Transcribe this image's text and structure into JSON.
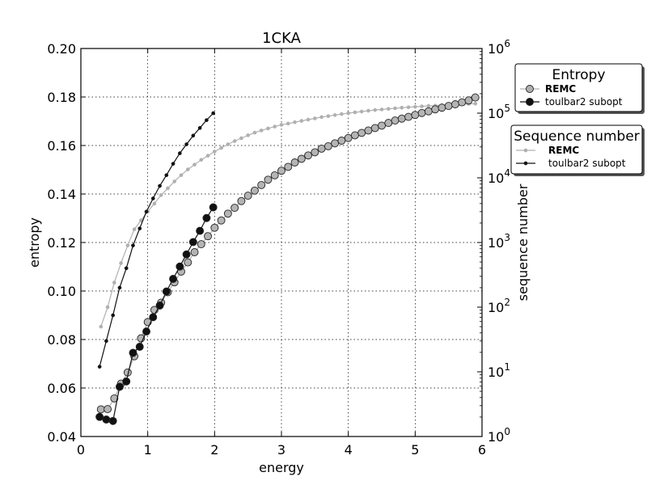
{
  "chart_data": {
    "type": "line",
    "title": "1CKA",
    "xlabel": "energy",
    "ylabel": "entropy",
    "y2label": "sequence number",
    "xlim": [
      0,
      6
    ],
    "ylim": [
      0.04,
      0.2
    ],
    "y2lim_log10": [
      0,
      6
    ],
    "y2scale": "log",
    "grid": true,
    "x_ticks": [
      "0",
      "1",
      "2",
      "3",
      "4",
      "5",
      "6"
    ],
    "y_ticks": [
      "0.04",
      "0.06",
      "0.08",
      "0.10",
      "0.12",
      "0.14",
      "0.16",
      "0.18",
      "0.20"
    ],
    "y2_ticks": [
      {
        "base": "10",
        "exp": "0"
      },
      {
        "base": "10",
        "exp": "1"
      },
      {
        "base": "10",
        "exp": "2"
      },
      {
        "base": "10",
        "exp": "3"
      },
      {
        "base": "10",
        "exp": "4"
      },
      {
        "base": "10",
        "exp": "5"
      },
      {
        "base": "10",
        "exp": "6"
      }
    ],
    "legends": [
      {
        "title": "Entropy",
        "placement": "top-right",
        "entries": [
          {
            "label": "REMC",
            "bold": true,
            "color": "#b0b0b0",
            "marker": "circle-large"
          },
          {
            "label": "toulbar2 subopt",
            "bold": false,
            "color": "#111111",
            "marker": "circle-large"
          }
        ]
      },
      {
        "title": "Sequence number",
        "placement": "right",
        "entries": [
          {
            "label": "REMC",
            "bold": true,
            "color": "#b0b0b0",
            "marker": "dot-small"
          },
          {
            "label": "toulbar2 subopt",
            "bold": false,
            "color": "#111111",
            "marker": "dot-small"
          }
        ]
      }
    ],
    "series": [
      {
        "name": "REMC",
        "legend": "Entropy",
        "axis": "left",
        "color": "#b0b0b0",
        "marker_fill": "#b4b4b4",
        "x": [
          0.3,
          0.4,
          0.5,
          0.6,
          0.7,
          0.8,
          0.9,
          1.0,
          1.1,
          1.2,
          1.3,
          1.4,
          1.5,
          1.6,
          1.7,
          1.8,
          1.9,
          2.0,
          2.1,
          2.2,
          2.3,
          2.4,
          2.5,
          2.6,
          2.7,
          2.8,
          2.9,
          3.0,
          3.1,
          3.2,
          3.3,
          3.4,
          3.5,
          3.6,
          3.7,
          3.8,
          3.9,
          4.0,
          4.1,
          4.2,
          4.3,
          4.4,
          4.5,
          4.6,
          4.7,
          4.8,
          4.9,
          5.0,
          5.1,
          5.2,
          5.3,
          5.4,
          5.5,
          5.6,
          5.7,
          5.8,
          5.9
        ],
        "y": [
          0.0512,
          0.0513,
          0.0557,
          0.0618,
          0.0664,
          0.0731,
          0.0805,
          0.0872,
          0.0922,
          0.0952,
          0.0995,
          0.1036,
          0.108,
          0.1118,
          0.116,
          0.1193,
          0.1226,
          0.1261,
          0.1291,
          0.1319,
          0.1343,
          0.1371,
          0.1393,
          0.1414,
          0.1437,
          0.1459,
          0.1477,
          0.1496,
          0.1512,
          0.153,
          0.1545,
          0.1559,
          0.1572,
          0.1587,
          0.1597,
          0.1609,
          0.162,
          0.1631,
          0.1642,
          0.1652,
          0.1662,
          0.1672,
          0.1682,
          0.1693,
          0.1703,
          0.1711,
          0.1718,
          0.1726,
          0.1734,
          0.1741,
          0.1749,
          0.1756,
          0.1763,
          0.177,
          0.1778,
          0.1786,
          0.1798
        ]
      },
      {
        "name": "toulbar2 subopt",
        "legend": "Entropy",
        "axis": "left",
        "color": "#111111",
        "marker_fill": "#111111",
        "x": [
          0.28,
          0.38,
          0.48,
          0.58,
          0.68,
          0.78,
          0.88,
          0.98,
          1.08,
          1.18,
          1.28,
          1.38,
          1.48,
          1.58,
          1.68,
          1.78,
          1.88,
          1.98
        ],
        "y": [
          0.0481,
          0.047,
          0.0464,
          0.0605,
          0.0627,
          0.0745,
          0.077,
          0.0833,
          0.0892,
          0.094,
          0.0998,
          0.105,
          0.1101,
          0.1151,
          0.1202,
          0.1248,
          0.1301,
          0.1345
        ]
      },
      {
        "name": "REMC",
        "legend": "Sequence number",
        "axis": "right",
        "color": "#b0b0b0",
        "marker_fill": "#b0b0b0",
        "x": [
          0.3,
          0.4,
          0.5,
          0.6,
          0.7,
          0.8,
          0.9,
          1.0,
          1.1,
          1.2,
          1.3,
          1.4,
          1.5,
          1.6,
          1.7,
          1.8,
          1.9,
          2.0,
          2.1,
          2.2,
          2.3,
          2.4,
          2.5,
          2.6,
          2.7,
          2.8,
          2.9,
          3.0,
          3.1,
          3.2,
          3.3,
          3.4,
          3.5,
          3.6,
          3.7,
          3.8,
          3.9,
          4.0,
          4.1,
          4.2,
          4.3,
          4.4,
          4.5,
          4.6,
          4.7,
          4.8,
          4.9,
          5.0,
          5.1,
          5.2,
          5.3,
          5.4,
          5.5,
          5.6,
          5.7,
          5.8,
          5.9
        ],
        "y": [
          50,
          100,
          240,
          480,
          900,
          1600,
          2200,
          3000,
          4000,
          5400,
          6900,
          8800,
          11000,
          13500,
          16000,
          19000,
          22000,
          25500,
          29000,
          33000,
          37000,
          41000,
          45500,
          50000,
          54000,
          58000,
          62000,
          66000,
          69000,
          72500,
          76000,
          79500,
          83000,
          87000,
          90000,
          93500,
          97000,
          100000,
          103000,
          106000,
          109000,
          112000,
          114000,
          116500,
          119000,
          121500,
          123500,
          125500,
          127500,
          129500,
          131000,
          133000,
          134500,
          136000,
          137500,
          139000,
          140500
        ]
      },
      {
        "name": "toulbar2 subopt",
        "legend": "Sequence number",
        "axis": "right",
        "color": "#111111",
        "marker_fill": "#111111",
        "x": [
          0.28,
          0.38,
          0.48,
          0.58,
          0.68,
          0.78,
          0.88,
          0.98,
          1.08,
          1.18,
          1.28,
          1.38,
          1.48,
          1.58,
          1.68,
          1.78,
          1.88,
          1.98
        ],
        "y": [
          12,
          30,
          75,
          200,
          400,
          900,
          1650,
          3000,
          4800,
          7500,
          11000,
          16500,
          24000,
          33000,
          45000,
          59000,
          78000,
          100000
        ]
      }
    ]
  }
}
